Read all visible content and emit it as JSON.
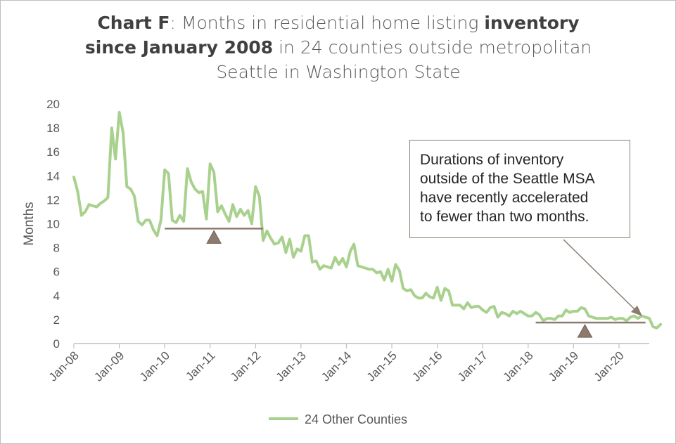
{
  "title": {
    "prefix_bold": "Chart F",
    "part1": ": Months in residential home listing ",
    "bold1": "inventory",
    "bold2": "since January 2008",
    "part2": " in 24 counties outside metropolitan Seattle in Washington State"
  },
  "annotation": {
    "lines": [
      "Durations of inventory",
      "outside of the Seattle MSA",
      "have recently accelerated",
      "to fewer than two months."
    ]
  },
  "colors": {
    "series": "#a9d18e",
    "marker": "#8c7b6e",
    "axis": "#bfbfbf",
    "text": "#595959"
  },
  "chart_data": {
    "type": "line",
    "title": "Chart F: Months in residential home listing inventory since January 2008 in 24 counties outside metropolitan Seattle in Washington State",
    "ylabel": "Months",
    "xlabel": "",
    "ylim": [
      0,
      20
    ],
    "yticks": [
      0,
      2,
      4,
      6,
      8,
      10,
      12,
      14,
      16,
      18,
      20
    ],
    "xtick_labels": [
      "Jan-08",
      "Jan-09",
      "Jan-10",
      "Jan-11",
      "Jan-12",
      "Jan-13",
      "Jan-14",
      "Jan-15",
      "Jan-16",
      "Jan-17",
      "Jan-18",
      "Jan-19",
      "Jan-20"
    ],
    "grid": false,
    "legend": "bottom",
    "series": [
      {
        "name": "24 Other Counties",
        "start": "Jan-08",
        "frequency": "monthly",
        "values": [
          13.9,
          12.7,
          10.7,
          11.0,
          11.6,
          11.5,
          11.4,
          11.7,
          11.9,
          12.2,
          18.0,
          15.4,
          19.3,
          17.6,
          13.1,
          12.9,
          12.3,
          10.2,
          9.9,
          10.3,
          10.3,
          9.5,
          9.0,
          10.3,
          14.5,
          14.2,
          10.3,
          10.1,
          10.7,
          10.2,
          14.6,
          13.5,
          12.9,
          12.6,
          12.7,
          10.4,
          15.0,
          14.3,
          11.0,
          11.5,
          10.8,
          10.2,
          11.6,
          10.6,
          11.2,
          10.7,
          11.1,
          10.0,
          13.1,
          12.3,
          8.6,
          9.4,
          8.8,
          8.3,
          8.4,
          8.9,
          7.6,
          8.7,
          7.2,
          7.9,
          7.7,
          9.0,
          9.0,
          6.8,
          6.9,
          6.2,
          6.5,
          6.4,
          6.3,
          7.2,
          6.6,
          7.1,
          6.4,
          7.7,
          8.3,
          6.5,
          6.4,
          6.3,
          6.2,
          6.2,
          5.9,
          6.0,
          5.3,
          6.2,
          5.2,
          6.6,
          6.1,
          4.6,
          4.4,
          4.5,
          4.0,
          3.8,
          3.8,
          4.2,
          3.9,
          3.8,
          4.7,
          3.6,
          4.6,
          4.4,
          3.2,
          3.2,
          3.2,
          2.9,
          3.4,
          3.0,
          3.1,
          3.1,
          2.8,
          2.6,
          3.0,
          3.1,
          2.2,
          2.6,
          2.5,
          2.3,
          2.7,
          2.5,
          2.7,
          2.5,
          2.3,
          2.3,
          2.6,
          2.4,
          1.9,
          2.1,
          2.1,
          2.0,
          2.3,
          2.3,
          2.8,
          2.6,
          2.7,
          2.7,
          3.0,
          2.9,
          2.3,
          2.2,
          2.1,
          2.1,
          2.1,
          2.1,
          2.2,
          2.0,
          2.1,
          2.1,
          1.9,
          2.2,
          2.3,
          2.1,
          2.3,
          2.2,
          2.1,
          1.4,
          1.3,
          1.6
        ]
      }
    ],
    "reference_lines": [
      {
        "y": 9.6,
        "from": "Jan-10",
        "to": "Mar-12"
      },
      {
        "y": 1.75,
        "from": "Mar-18",
        "to": "Aug-20"
      }
    ],
    "markers": [
      {
        "shape": "triangle",
        "x": "Feb-11"
      },
      {
        "shape": "triangle",
        "x": "Apr-19"
      }
    ]
  }
}
